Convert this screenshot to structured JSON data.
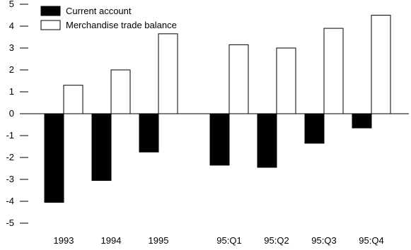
{
  "chart_data": {
    "type": "bar",
    "title": "",
    "xlabel": "",
    "ylabel": "",
    "ylim": [
      -5,
      5
    ],
    "yticks": [
      5,
      4,
      3,
      2,
      1,
      0,
      -1,
      -2,
      -3,
      -4,
      -5
    ],
    "ytick_labels": [
      "5",
      "4",
      "3",
      "2",
      "1",
      "0",
      "-1",
      "-2",
      "-3",
      "-4",
      "-5"
    ],
    "grid": false,
    "legend_position": "top-left",
    "categories": [
      "1993",
      "1994",
      "1995",
      "95:Q1",
      "95:Q2",
      "95:Q3",
      "95:Q4"
    ],
    "series": [
      {
        "name": "Current account",
        "color": "#000000",
        "values": [
          -4.05,
          -3.05,
          -1.75,
          -2.35,
          -2.45,
          -1.35,
          -0.65
        ]
      },
      {
        "name": "Merchandise trade balance",
        "color": "#ffffff",
        "values": [
          1.3,
          2.0,
          3.65,
          3.15,
          3.0,
          3.9,
          4.5
        ]
      }
    ]
  }
}
